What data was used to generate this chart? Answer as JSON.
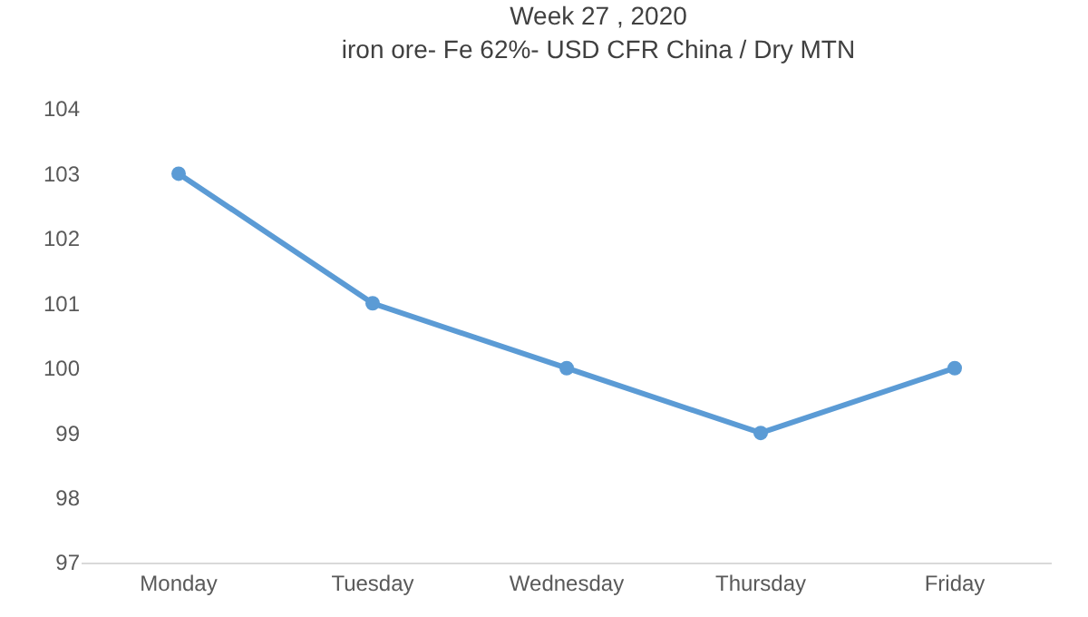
{
  "chart_data": {
    "type": "line",
    "title": "Week 27 , 2020",
    "subtitle": "iron ore- Fe 62%- USD CFR China / Dry MTN",
    "categories": [
      "Monday",
      "Tuesday",
      "Wednesday",
      "Thursday",
      "Friday"
    ],
    "series": [
      {
        "color": "#5b9bd5",
        "values": [
          103,
          101,
          100,
          99,
          100
        ]
      }
    ],
    "ylim": [
      97,
      104
    ],
    "yticks": [
      97,
      98,
      99,
      100,
      101,
      102,
      103,
      104
    ],
    "grid": false,
    "marker": "circle",
    "line_style": "solid"
  }
}
